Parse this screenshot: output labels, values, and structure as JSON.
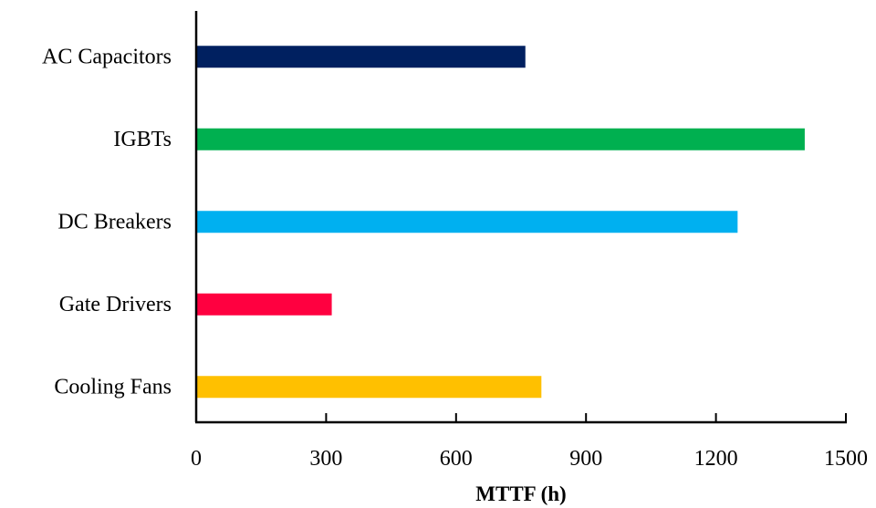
{
  "chart_data": {
    "type": "bar",
    "orientation": "horizontal",
    "categories": [
      "AC Capacitors",
      "IGBTs",
      "DC Breakers",
      "Gate Drivers",
      "Cooling Fans"
    ],
    "values": [
      760,
      1405,
      1250,
      313,
      797
    ],
    "colors": [
      "#002060",
      "#00B050",
      "#00B0F0",
      "#FF0040",
      "#FFC000"
    ],
    "xlabel": "MTTF (h)",
    "ylabel": "",
    "xlim": [
      0,
      1500
    ],
    "xticks": [
      0,
      300,
      600,
      900,
      1200,
      1500
    ],
    "grid": false,
    "legend": "none"
  }
}
